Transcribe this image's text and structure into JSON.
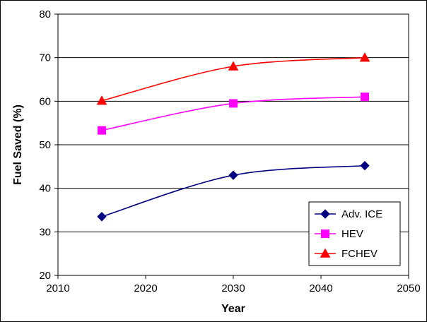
{
  "chart_data": {
    "type": "line",
    "title": "",
    "xlabel": "Year",
    "ylabel": "Fuel Saved (%)",
    "xlim": [
      2010,
      2050
    ],
    "ylim": [
      20,
      80
    ],
    "x_ticks": [
      2010,
      2020,
      2030,
      2040,
      2050
    ],
    "y_ticks": [
      20,
      30,
      40,
      50,
      60,
      70,
      80
    ],
    "grid": "horizontal",
    "legend_position": "bottom-right",
    "series": [
      {
        "name": "Adv. ICE",
        "color": "#000080",
        "marker": "diamond",
        "x": [
          2015,
          2030,
          2045
        ],
        "values": [
          33.5,
          43.0,
          45.2
        ]
      },
      {
        "name": "HEV",
        "color": "#FF00FF",
        "marker": "square",
        "x": [
          2015,
          2030,
          2045
        ],
        "values": [
          53.3,
          59.5,
          61.0
        ]
      },
      {
        "name": "FCHEV",
        "color": "#FF0000",
        "marker": "triangle",
        "x": [
          2015,
          2030,
          2045
        ],
        "values": [
          60.1,
          68.0,
          70.0
        ]
      }
    ]
  }
}
